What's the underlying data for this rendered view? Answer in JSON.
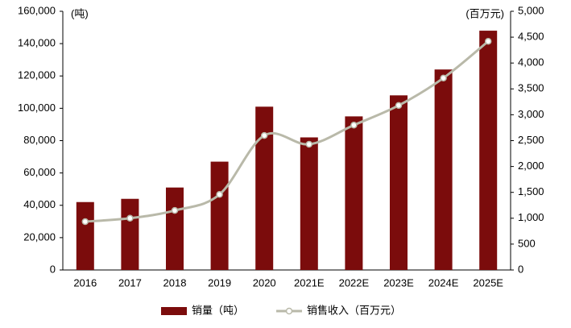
{
  "chart_data": {
    "type": "bar_line",
    "y_unit": "(吨)",
    "y2_unit": "(百万元)",
    "categories": [
      "2016",
      "2017",
      "2018",
      "2019",
      "2020",
      "2021E",
      "2022E",
      "2023E",
      "2024E",
      "2025E"
    ],
    "series": [
      {
        "name": "销量（吨）",
        "type": "bar",
        "color": "#7b0c0c",
        "values": [
          42000,
          44000,
          51000,
          67000,
          101000,
          82000,
          95000,
          108000,
          124000,
          148000
        ]
      },
      {
        "name": "销售收入（百万元）",
        "type": "line",
        "axis": "y2",
        "color": "#b9b9a9",
        "values": [
          935,
          1000,
          1150,
          1460,
          2600,
          2430,
          2800,
          3180,
          3710,
          4420
        ]
      }
    ],
    "ylim": [
      0,
      160000
    ],
    "yticks": [
      0,
      {
        "value": 20000,
        "label": "20,000"
      },
      {
        "value": 40000,
        "label": "40,000"
      },
      {
        "value": 60000,
        "label": "60,000"
      },
      {
        "value": 80000,
        "label": "80,000"
      },
      {
        "value": 100000,
        "label": "100,000"
      },
      {
        "value": 120000,
        "label": "120,000"
      },
      {
        "value": 140000,
        "label": "140,000"
      },
      {
        "value": 160000,
        "label": "160,000"
      }
    ],
    "y2lim": [
      0,
      5000
    ],
    "y2ticks": [
      0,
      500,
      {
        "value": 1000,
        "label": "1,000"
      },
      {
        "value": 1500,
        "label": "1,500"
      },
      {
        "value": 2000,
        "label": "2,000"
      },
      {
        "value": 2500,
        "label": "2,500"
      },
      {
        "value": 3000,
        "label": "3,000"
      },
      {
        "value": 3500,
        "label": "3,500"
      },
      {
        "value": 4000,
        "label": "4,000"
      },
      {
        "value": 4500,
        "label": "4,500"
      },
      {
        "value": 5000,
        "label": "5,000"
      }
    ],
    "legend": "bottom"
  }
}
